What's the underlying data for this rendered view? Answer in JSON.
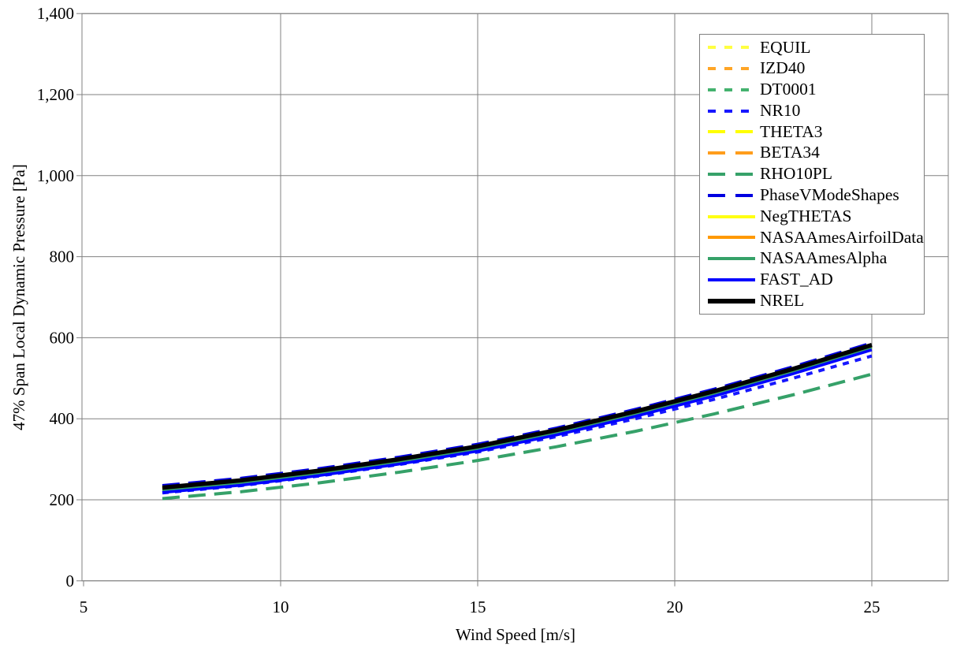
{
  "page": {
    "background": "#ffffff"
  },
  "axis_color": "#808080",
  "text_color": "#000000",
  "chart_data": {
    "type": "line",
    "title": "",
    "xlabel": "Wind Speed [m/s]",
    "ylabel": "47% Span Local Dynamic Pressure [Pa]",
    "xlim": [
      5,
      27
    ],
    "ylim": [
      0,
      1400
    ],
    "grid": true,
    "legend_position": "top-right",
    "xticks": [
      5,
      10,
      15,
      20,
      25
    ],
    "xtick_labels": [
      "5",
      "10",
      "15",
      "20",
      "25"
    ],
    "yticks": [
      0,
      200,
      400,
      600,
      800,
      1000,
      1200,
      1400
    ],
    "ytick_labels": [
      "0",
      "200",
      "400",
      "600",
      "800",
      "1,000",
      "1,200",
      "1,400"
    ],
    "x": [
      7,
      9,
      11,
      13,
      15,
      17,
      19,
      21,
      23,
      25
    ],
    "series": [
      {
        "name": "EQUIL",
        "color": "#ffff42",
        "line_style": "short",
        "width": 4,
        "values": [
          228,
          246,
          270,
          298,
          330,
          370,
          416,
          466,
          521,
          580
        ]
      },
      {
        "name": "IZD40",
        "color": "#ffa526",
        "line_style": "short",
        "width": 4,
        "values": [
          227,
          245,
          269,
          297,
          329,
          369,
          415,
          465,
          520,
          579
        ]
      },
      {
        "name": "DT0001",
        "color": "#44b26e",
        "line_style": "short",
        "width": 4,
        "values": [
          226,
          244,
          268,
          296,
          328,
          368,
          414,
          464,
          519,
          578
        ]
      },
      {
        "name": "NR10",
        "color": "#1717ff",
        "line_style": "short",
        "width": 4,
        "values": [
          217,
          235,
          259,
          287,
          318,
          356,
          400,
          448,
          500,
          555
        ]
      },
      {
        "name": "THETA3",
        "color": "#ffff00",
        "line_style": "long",
        "width": 4,
        "values": [
          228,
          246,
          270,
          298,
          330,
          370,
          416,
          466,
          521,
          580
        ]
      },
      {
        "name": "BETA34",
        "color": "#ff9d1c",
        "line_style": "long",
        "width": 4,
        "values": [
          227,
          245,
          269,
          297,
          329,
          369,
          415,
          465,
          520,
          579
        ]
      },
      {
        "name": "RHO10PL",
        "color": "#36a169",
        "line_style": "long",
        "width": 4,
        "values": [
          203,
          220,
          242,
          268,
          297,
          331,
          369,
          412,
          459,
          510
        ]
      },
      {
        "name": "PhaseVModeShapes",
        "color": "#0000e0",
        "line_style": "long",
        "width": 4,
        "values": [
          235,
          253,
          277,
          305,
          337,
          377,
          423,
          473,
          528,
          587
        ]
      },
      {
        "name": "NegTHETAS",
        "color": "#ffff12",
        "line_style": "solid",
        "width": 3.5,
        "values": [
          224,
          242,
          266,
          294,
          326,
          366,
          412,
          462,
          517,
          576
        ]
      },
      {
        "name": "NASAAmesAirfoilData",
        "color": "#ff9900",
        "line_style": "solid",
        "width": 3.5,
        "values": [
          222,
          240,
          264,
          292,
          324,
          364,
          410,
          460,
          515,
          574
        ]
      },
      {
        "name": "NASAAmesAlpha",
        "color": "#36a169",
        "line_style": "solid",
        "width": 3.5,
        "values": [
          223,
          241,
          265,
          293,
          325,
          365,
          411,
          461,
          516,
          575
        ]
      },
      {
        "name": "FAST_AD",
        "color": "#0000ff",
        "line_style": "solid",
        "width": 3.5,
        "values": [
          218,
          236,
          260,
          288,
          320,
          360,
          406,
          456,
          511,
          570
        ]
      },
      {
        "name": "NREL",
        "color": "#000000",
        "line_style": "solid",
        "width": 5.5,
        "values": [
          230,
          248,
          272,
          300,
          332,
          372,
          418,
          468,
          523,
          582
        ]
      }
    ]
  }
}
